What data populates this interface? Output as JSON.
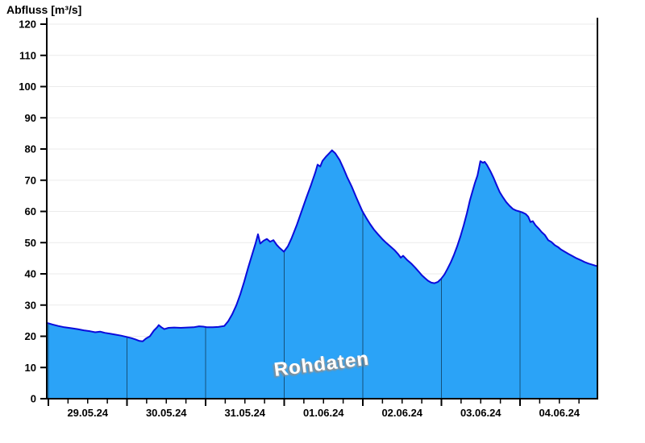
{
  "title": "Abfluss [m³/s]",
  "watermark": "Rohdaten",
  "colors": {
    "fill": "#2ba3f7",
    "stroke": "#0b0bdb",
    "grid": "#ebebeb",
    "axis": "#000000",
    "day_separator": "#000000",
    "watermark_text": "#ffffff",
    "watermark_shadow": "#8c8c8c"
  },
  "chart_data": {
    "type": "area",
    "title": "Abfluss [m³/s]",
    "ylabel": "Abfluss [m³/s]",
    "xlabel": "",
    "ylim": [
      0,
      120
    ],
    "ytick_step": 10,
    "ytick_labels": [
      "0",
      "10",
      "20",
      "30",
      "40",
      "50",
      "60",
      "70",
      "80",
      "90",
      "100",
      "110",
      "120"
    ],
    "x_unit": "hours since 29.05.2024 00:00",
    "xlim": [
      -0.5,
      167.6
    ],
    "grid": "horizontal-only",
    "legend": "none",
    "day_labels": [
      "29.05.24",
      "30.05.24",
      "31.05.24",
      "01.06.24",
      "02.06.24",
      "03.06.24",
      "04.06.24"
    ],
    "day_label_positions_h": [
      12,
      36,
      60,
      84,
      108,
      132,
      156
    ],
    "midnight_separators_h": [
      0,
      24,
      48,
      72,
      96,
      120,
      144
    ],
    "minor_tick_interval_h": 6,
    "annotations": [
      {
        "text": "Rohdaten",
        "style": "white rotated watermark near x=84h, y=8"
      }
    ],
    "series": [
      {
        "name": "Abfluss Rohdaten",
        "points": [
          [
            -0.5,
            24.3
          ],
          [
            1.2,
            23.8
          ],
          [
            3.0,
            23.3
          ],
          [
            4.9,
            22.9
          ],
          [
            6.9,
            22.6
          ],
          [
            8.9,
            22.3
          ],
          [
            10.8,
            21.9
          ],
          [
            12.8,
            21.6
          ],
          [
            14.3,
            21.3
          ],
          [
            15.8,
            21.5
          ],
          [
            17.2,
            21.1
          ],
          [
            19.0,
            20.8
          ],
          [
            20.7,
            20.5
          ],
          [
            22.2,
            20.2
          ],
          [
            23.9,
            19.8
          ],
          [
            25.4,
            19.4
          ],
          [
            26.6,
            19.0
          ],
          [
            27.8,
            18.5
          ],
          [
            28.8,
            18.4
          ],
          [
            29.8,
            19.3
          ],
          [
            31.0,
            20.0
          ],
          [
            32.2,
            21.8
          ],
          [
            33.2,
            22.9
          ],
          [
            33.7,
            23.6
          ],
          [
            34.5,
            22.9
          ],
          [
            35.4,
            22.3
          ],
          [
            36.7,
            22.7
          ],
          [
            38.4,
            22.8
          ],
          [
            40.4,
            22.7
          ],
          [
            42.3,
            22.8
          ],
          [
            44.3,
            22.9
          ],
          [
            46.0,
            23.2
          ],
          [
            47.3,
            23.1
          ],
          [
            48.5,
            22.9
          ],
          [
            50.2,
            22.9
          ],
          [
            51.9,
            23.0
          ],
          [
            53.7,
            23.3
          ],
          [
            54.9,
            24.8
          ],
          [
            56.1,
            27.0
          ],
          [
            57.4,
            30.0
          ],
          [
            58.6,
            33.5
          ],
          [
            59.8,
            37.5
          ],
          [
            61.0,
            42.0
          ],
          [
            62.3,
            46.5
          ],
          [
            63.3,
            50.0
          ],
          [
            64.0,
            52.7
          ],
          [
            64.7,
            49.7
          ],
          [
            65.7,
            50.6
          ],
          [
            66.7,
            51.2
          ],
          [
            67.7,
            50.3
          ],
          [
            68.7,
            50.8
          ],
          [
            69.7,
            49.3
          ],
          [
            70.6,
            48.3
          ],
          [
            71.9,
            47.1
          ],
          [
            73.1,
            48.8
          ],
          [
            74.3,
            51.5
          ],
          [
            75.8,
            55.5
          ],
          [
            77.3,
            60.0
          ],
          [
            78.8,
            64.5
          ],
          [
            80.2,
            68.5
          ],
          [
            81.5,
            72.5
          ],
          [
            82.2,
            75.0
          ],
          [
            83.0,
            74.4
          ],
          [
            83.7,
            76.2
          ],
          [
            84.7,
            77.5
          ],
          [
            85.7,
            78.6
          ],
          [
            86.6,
            79.6
          ],
          [
            87.6,
            78.6
          ],
          [
            88.9,
            76.5
          ],
          [
            90.1,
            73.8
          ],
          [
            91.3,
            70.8
          ],
          [
            92.6,
            68.0
          ],
          [
            94.0,
            64.5
          ],
          [
            95.8,
            60.2
          ],
          [
            97.0,
            58.0
          ],
          [
            98.2,
            56.0
          ],
          [
            99.4,
            54.2
          ],
          [
            100.7,
            52.6
          ],
          [
            101.9,
            51.2
          ],
          [
            103.1,
            50.0
          ],
          [
            104.4,
            48.8
          ],
          [
            105.6,
            47.7
          ],
          [
            106.8,
            46.3
          ],
          [
            107.6,
            45.2
          ],
          [
            108.3,
            45.8
          ],
          [
            109.5,
            44.5
          ],
          [
            110.8,
            43.3
          ],
          [
            112.0,
            42.0
          ],
          [
            113.0,
            40.8
          ],
          [
            114.0,
            39.6
          ],
          [
            115.0,
            38.6
          ],
          [
            115.9,
            37.8
          ],
          [
            116.9,
            37.2
          ],
          [
            117.9,
            37.0
          ],
          [
            118.9,
            37.4
          ],
          [
            119.9,
            38.4
          ],
          [
            120.9,
            39.8
          ],
          [
            121.8,
            41.5
          ],
          [
            122.8,
            43.6
          ],
          [
            123.8,
            46.0
          ],
          [
            124.8,
            48.8
          ],
          [
            125.8,
            52.0
          ],
          [
            126.8,
            55.5
          ],
          [
            127.8,
            59.5
          ],
          [
            128.7,
            63.5
          ],
          [
            129.5,
            66.5
          ],
          [
            130.2,
            69.0
          ],
          [
            131.0,
            71.5
          ],
          [
            131.4,
            73.5
          ],
          [
            131.9,
            76.1
          ],
          [
            132.7,
            75.6
          ],
          [
            133.2,
            75.9
          ],
          [
            133.9,
            74.9
          ],
          [
            134.9,
            73.0
          ],
          [
            135.9,
            70.8
          ],
          [
            136.9,
            68.3
          ],
          [
            137.8,
            66.2
          ],
          [
            138.8,
            64.5
          ],
          [
            139.8,
            63.0
          ],
          [
            140.8,
            61.8
          ],
          [
            141.8,
            60.8
          ],
          [
            142.8,
            60.3
          ],
          [
            143.8,
            60.0
          ],
          [
            144.7,
            59.7
          ],
          [
            145.7,
            59.2
          ],
          [
            146.5,
            58.3
          ],
          [
            147.2,
            56.6
          ],
          [
            147.9,
            56.9
          ],
          [
            148.7,
            55.6
          ],
          [
            149.7,
            54.5
          ],
          [
            150.6,
            53.4
          ],
          [
            151.6,
            52.4
          ],
          [
            152.6,
            50.8
          ],
          [
            153.6,
            50.2
          ],
          [
            154.6,
            49.2
          ],
          [
            155.6,
            48.6
          ],
          [
            156.5,
            47.8
          ],
          [
            157.5,
            47.2
          ],
          [
            158.8,
            46.4
          ],
          [
            160.0,
            45.7
          ],
          [
            161.2,
            45.0
          ],
          [
            162.5,
            44.4
          ],
          [
            163.7,
            43.8
          ],
          [
            164.9,
            43.3
          ],
          [
            166.2,
            42.9
          ],
          [
            167.4,
            42.5
          ]
        ]
      }
    ]
  }
}
